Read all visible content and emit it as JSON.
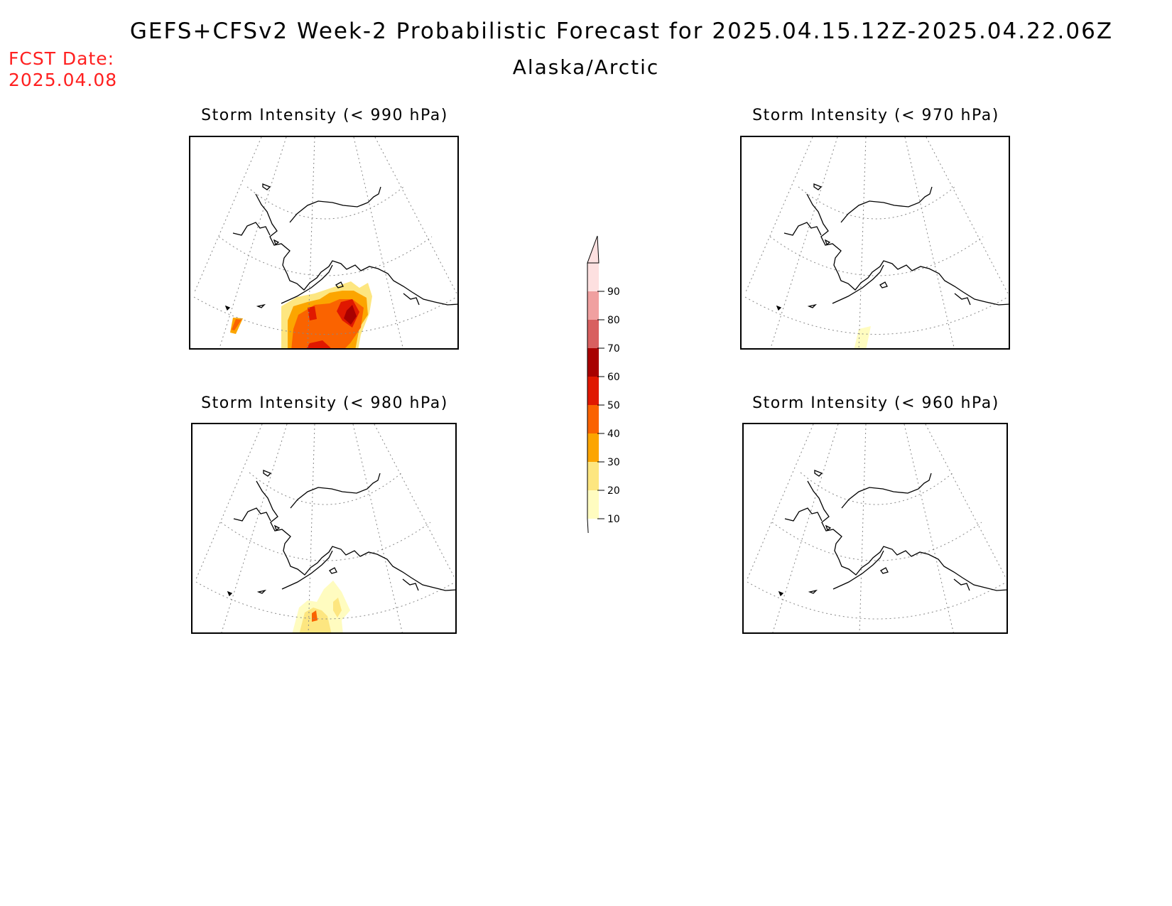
{
  "header": {
    "title": "GEFS+CFSv2 Week-2 Probabilistic Forecast for 2025.04.15.12Z-2025.04.22.06Z",
    "subtitle": "Alaska/Arctic",
    "fcst_label": "FCST Date:",
    "fcst_date": "2025.04.08"
  },
  "panels": [
    {
      "id": "p990",
      "title": "Storm Intensity (< 990 hPa)"
    },
    {
      "id": "p970",
      "title": "Storm Intensity (< 970 hPa)"
    },
    {
      "id": "p980",
      "title": "Storm Intensity (< 980 hPa)"
    },
    {
      "id": "p960",
      "title": "Storm Intensity (< 960 hPa)"
    }
  ],
  "colorbar": {
    "ticks": [
      "10",
      "20",
      "30",
      "40",
      "50",
      "60",
      "70",
      "80",
      "90"
    ],
    "colors": [
      "#fffcc0",
      "#fde680",
      "#fca500",
      "#fa6300",
      "#e01800",
      "#a80000",
      "#d86060",
      "#f0a0a0",
      "#fde0e0"
    ]
  }
}
